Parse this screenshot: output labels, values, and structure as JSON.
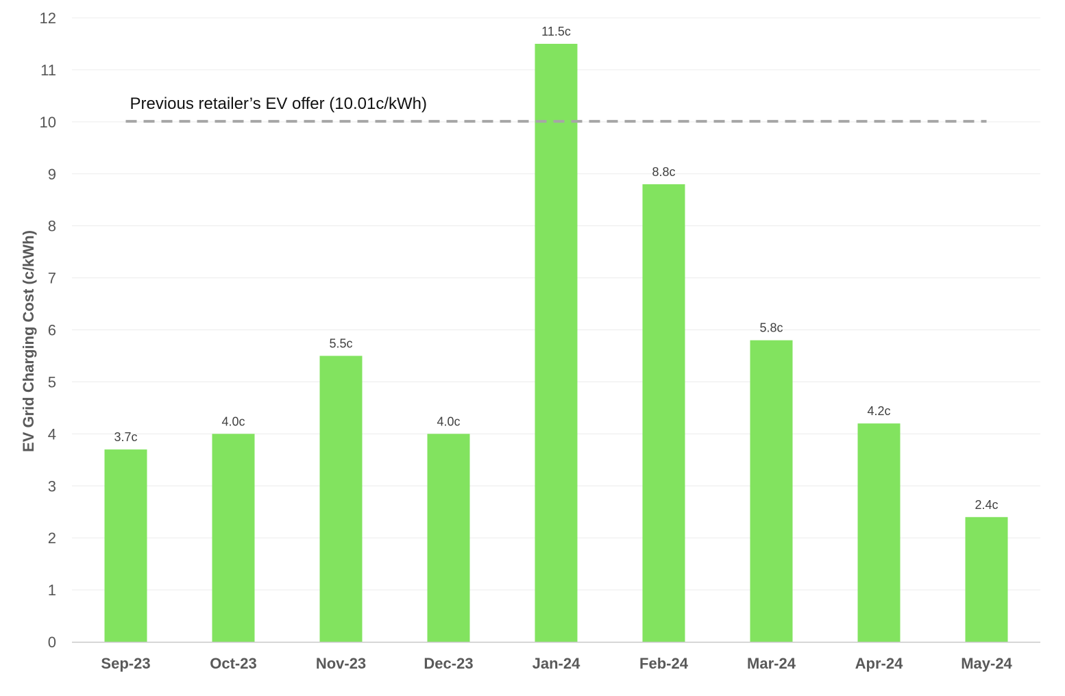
{
  "chart_data": {
    "type": "bar",
    "categories": [
      "Sep-23",
      "Oct-23",
      "Nov-23",
      "Dec-23",
      "Jan-24",
      "Feb-24",
      "Mar-24",
      "Apr-24",
      "May-24"
    ],
    "values": [
      3.7,
      4.0,
      5.5,
      4.0,
      11.5,
      8.8,
      5.8,
      4.2,
      2.4
    ],
    "data_labels": [
      "3.7c",
      "4.0c",
      "5.5c",
      "4.0c",
      "11.5c",
      "8.8c",
      "5.8c",
      "4.2c",
      "2.4c"
    ],
    "title": "",
    "xlabel": "",
    "ylabel": "EV Grid Charging Cost (c/kWh)",
    "ylim": [
      0,
      12
    ],
    "yticks": [
      "0",
      "1",
      "2",
      "3",
      "4",
      "5",
      "6",
      "7",
      "8",
      "9",
      "10",
      "11",
      "12"
    ],
    "grid": "horizontal",
    "bar_color": "#82e35f",
    "reference_line": {
      "value": 10.01,
      "label": "Previous retailer’s EV offer (10.01c/kWh)",
      "style": "dashed",
      "color": "#a6a6a6"
    }
  }
}
